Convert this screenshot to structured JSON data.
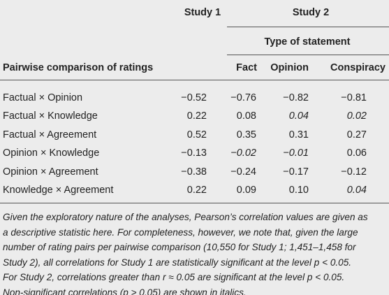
{
  "table": {
    "header": {
      "study1": "Study 1",
      "study2": "Study 2",
      "group": "Type of statement",
      "row_label": "Pairwise comparison of ratings",
      "columns": [
        "Fact",
        "Opinion",
        "Conspiracy"
      ]
    },
    "rows": [
      {
        "label": "Factual × Opinion",
        "values": [
          "−0.52",
          "−0.76",
          "−0.82",
          "−0.81"
        ],
        "italic": [
          false,
          false,
          false,
          false
        ]
      },
      {
        "label": "Factual × Knowledge",
        "values": [
          "0.22",
          "0.08",
          "0.04",
          "0.02"
        ],
        "italic": [
          false,
          false,
          true,
          true
        ]
      },
      {
        "label": "Factual × Agreement",
        "values": [
          "0.52",
          "0.35",
          "0.31",
          "0.27"
        ],
        "italic": [
          false,
          false,
          false,
          false
        ]
      },
      {
        "label": "Opinion × Knowledge",
        "values": [
          "−0.13",
          "−0.02",
          "−0.01",
          "0.06"
        ],
        "italic": [
          false,
          true,
          true,
          false
        ]
      },
      {
        "label": "Opinion × Agreement",
        "values": [
          "−0.38",
          "−0.24",
          "−0.17",
          "−0.12"
        ],
        "italic": [
          false,
          false,
          false,
          false
        ]
      },
      {
        "label": "Knowledge × Agreement",
        "values": [
          "0.22",
          "0.09",
          "0.10",
          "0.04"
        ],
        "italic": [
          false,
          false,
          false,
          true
        ]
      }
    ],
    "note": [
      "Given the exploratory nature of the analyses, Pearson’s correlation values are given as",
      "a descriptive statistic here. For completeness, however, we note that, given the large",
      "number of rating pairs per pairwise comparison (10,550 for Study 1; 1,451–1,458 for",
      "Study 2), all correlations for Study 1 are statistically significant at the level p < 0.05.",
      "For Study 2, correlations greater than r ≈ 0.05 are significant at the level p < 0.05.",
      "Non-significant correlations (p > 0.05) are shown in italics."
    ]
  }
}
